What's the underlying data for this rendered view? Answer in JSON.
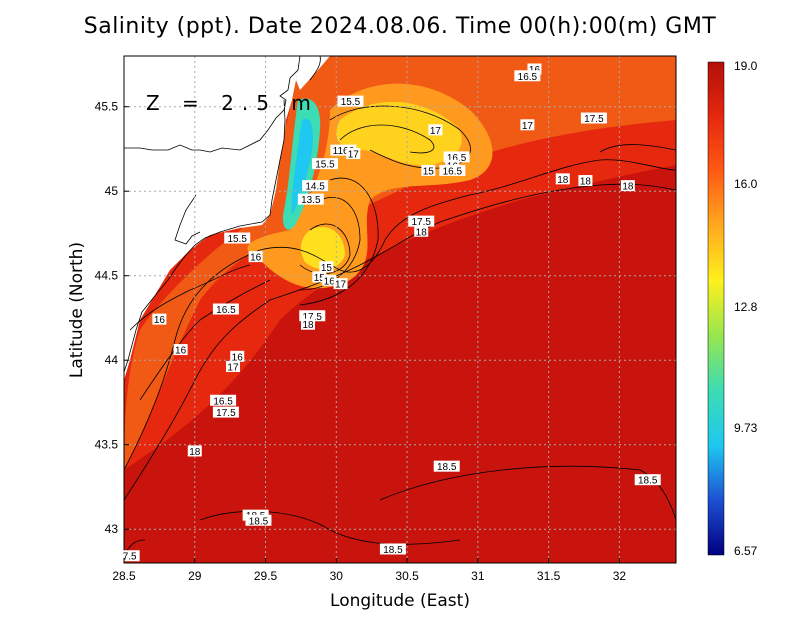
{
  "title": "Salinity (ppt). Date 2024.08.06. Time 00(h):00(m) GMT",
  "depth_label": "Z = 2.5 m",
  "axes": {
    "xlabel": "Longitude (East)",
    "ylabel": "Latitude (North)",
    "xlim": [
      28.5,
      32.4
    ],
    "ylim": [
      42.8,
      45.8
    ],
    "xticks": [
      "28.5",
      "29",
      "29.5",
      "30",
      "30.5",
      "31",
      "31.5",
      "32"
    ],
    "yticks": [
      "43",
      "43.5",
      "44",
      "44.5",
      "45",
      "45.5"
    ],
    "grid": "dotted"
  },
  "colorbar": {
    "labels": [
      "19.0",
      "16.0",
      "12.8",
      "9.73",
      "6.57"
    ],
    "min": 6.57,
    "max": 19.0,
    "colors": [
      "#000080",
      "#1e50d2",
      "#1ec8f0",
      "#3cdcb4",
      "#96e650",
      "#fff01e",
      "#ffaa1e",
      "#ff5a14",
      "#e6280f",
      "#b40f0a"
    ]
  },
  "contour_labels": [
    {
      "text": "16",
      "lon": 31.4,
      "lat": 45.72
    },
    {
      "text": "16.5",
      "lon": 31.35,
      "lat": 45.68
    },
    {
      "text": "15.5",
      "lon": 30.1,
      "lat": 45.53
    },
    {
      "text": "17",
      "lon": 30.7,
      "lat": 45.36
    },
    {
      "text": "17",
      "lon": 31.35,
      "lat": 45.39
    },
    {
      "text": "17.5",
      "lon": 31.82,
      "lat": 45.43
    },
    {
      "text": "16.5",
      "lon": 30.85,
      "lat": 45.2
    },
    {
      "text": "16",
      "lon": 30.82,
      "lat": 45.15
    },
    {
      "text": "15",
      "lon": 30.65,
      "lat": 45.12
    },
    {
      "text": "16.5",
      "lon": 30.82,
      "lat": 45.12
    },
    {
      "text": "1166",
      "lon": 30.05,
      "lat": 45.24
    },
    {
      "text": "17",
      "lon": 30.12,
      "lat": 45.22
    },
    {
      "text": "15.5",
      "lon": 29.92,
      "lat": 45.16
    },
    {
      "text": "14.5",
      "lon": 29.85,
      "lat": 45.03
    },
    {
      "text": "13.5",
      "lon": 29.82,
      "lat": 44.95
    },
    {
      "text": "18",
      "lon": 31.6,
      "lat": 45.07
    },
    {
      "text": "18",
      "lon": 31.76,
      "lat": 45.06
    },
    {
      "text": "18",
      "lon": 32.06,
      "lat": 45.03
    },
    {
      "text": "17.5",
      "lon": 30.6,
      "lat": 44.82
    },
    {
      "text": "18",
      "lon": 30.6,
      "lat": 44.76
    },
    {
      "text": "15.5",
      "lon": 29.3,
      "lat": 44.72
    },
    {
      "text": "16",
      "lon": 29.43,
      "lat": 44.61
    },
    {
      "text": "15",
      "lon": 29.93,
      "lat": 44.55
    },
    {
      "text": "15",
      "lon": 29.88,
      "lat": 44.49
    },
    {
      "text": "16",
      "lon": 29.95,
      "lat": 44.47
    },
    {
      "text": "17",
      "lon": 30.03,
      "lat": 44.45
    },
    {
      "text": "16.5",
      "lon": 29.22,
      "lat": 44.3
    },
    {
      "text": "16",
      "lon": 28.75,
      "lat": 44.24
    },
    {
      "text": "17.5",
      "lon": 29.83,
      "lat": 44.26
    },
    {
      "text": "18",
      "lon": 29.8,
      "lat": 44.21
    },
    {
      "text": "16",
      "lon": 28.9,
      "lat": 44.06
    },
    {
      "text": "16",
      "lon": 29.3,
      "lat": 44.02
    },
    {
      "text": "17",
      "lon": 29.27,
      "lat": 43.96
    },
    {
      "text": "16.5",
      "lon": 29.2,
      "lat": 43.76
    },
    {
      "text": "17.5",
      "lon": 29.22,
      "lat": 43.69
    },
    {
      "text": "18",
      "lon": 29.0,
      "lat": 43.46
    },
    {
      "text": "18.5",
      "lon": 30.78,
      "lat": 43.37
    },
    {
      "text": "18.5",
      "lon": 32.2,
      "lat": 43.29
    },
    {
      "text": "18.5",
      "lon": 29.43,
      "lat": 43.08
    },
    {
      "text": "18.5",
      "lon": 29.45,
      "lat": 43.05
    },
    {
      "text": "18.5",
      "lon": 30.4,
      "lat": 42.88
    },
    {
      "text": "7.5",
      "lon": 28.54,
      "lat": 42.84
    }
  ]
}
